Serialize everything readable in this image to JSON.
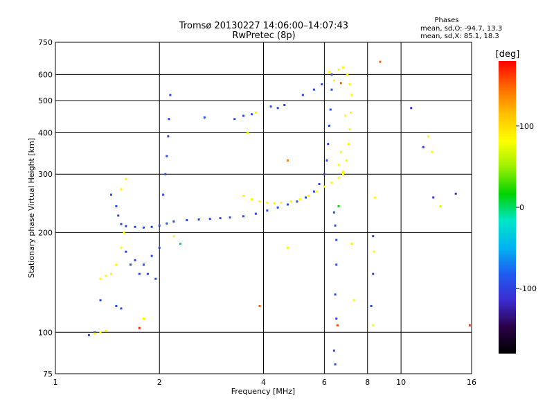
{
  "chart_data": {
    "type": "scatter",
    "title": "Tromsø 20130227 14:06:00–14:07:43",
    "subtitle": "RwPretec (8p)",
    "xlabel": "Frequency [MHz]",
    "ylabel": "Stationary phase Virtual Height [km]",
    "x_scale": "log",
    "y_scale": "log",
    "xlim": [
      1,
      16
    ],
    "ylim": [
      75,
      750
    ],
    "x_ticks": [
      1,
      2,
      4,
      6,
      8,
      10,
      16
    ],
    "y_ticks": [
      75,
      100,
      200,
      300,
      400,
      500,
      600,
      750
    ],
    "grid": true,
    "stats": {
      "heading": "Phases",
      "line1": "mean, sd,O: -94.7, 13.3",
      "line2": "mean, sd,X:  85.1, 18.3"
    },
    "colorbar": {
      "label": "[deg]",
      "range": [
        -180,
        180
      ],
      "ticks": [
        100,
        0,
        -100
      ],
      "colormap": [
        "#000000",
        "#2a0048",
        "#3b2bd0",
        "#1e5cf0",
        "#00b4f0",
        "#00e6c8",
        "#00d200",
        "#9af000",
        "#ffff00",
        "#ffc000",
        "#ff6a00",
        "#ff0000"
      ]
    },
    "series": [
      {
        "mode": "O",
        "phase_deg": -95,
        "points": [
          [
            1.55,
            212
          ],
          [
            1.6,
            209
          ],
          [
            1.7,
            208
          ],
          [
            1.8,
            207
          ],
          [
            1.9,
            208
          ],
          [
            2.0,
            210
          ],
          [
            2.1,
            213
          ],
          [
            2.2,
            216
          ],
          [
            2.4,
            218
          ],
          [
            2.6,
            219
          ],
          [
            2.8,
            220
          ],
          [
            3.0,
            221
          ],
          [
            3.2,
            222
          ],
          [
            3.5,
            224
          ],
          [
            3.8,
            228
          ],
          [
            4.1,
            233
          ],
          [
            4.4,
            238
          ],
          [
            4.7,
            243
          ],
          [
            5.0,
            248
          ],
          [
            5.3,
            255
          ],
          [
            5.6,
            266
          ],
          [
            5.8,
            280
          ],
          [
            6.0,
            300
          ],
          [
            6.1,
            330
          ],
          [
            6.15,
            370
          ],
          [
            6.2,
            420
          ],
          [
            6.25,
            470
          ],
          [
            6.3,
            540
          ],
          [
            6.3,
            600
          ],
          [
            2.05,
            260
          ],
          [
            2.08,
            300
          ],
          [
            2.1,
            340
          ],
          [
            2.12,
            390
          ],
          [
            2.13,
            440
          ],
          [
            2.15,
            520
          ],
          [
            1.45,
            260
          ],
          [
            1.5,
            240
          ],
          [
            1.52,
            225
          ],
          [
            4.2,
            480
          ],
          [
            4.4,
            475
          ],
          [
            4.6,
            485
          ],
          [
            5.2,
            520
          ],
          [
            5.6,
            540
          ],
          [
            5.9,
            560
          ],
          [
            2.7,
            445
          ],
          [
            3.3,
            440
          ],
          [
            3.5,
            450
          ],
          [
            3.7,
            455
          ],
          [
            1.6,
            175
          ],
          [
            1.7,
            165
          ],
          [
            1.8,
            160
          ],
          [
            1.9,
            170
          ],
          [
            2.0,
            180
          ],
          [
            1.85,
            150
          ],
          [
            1.95,
            145
          ],
          [
            1.75,
            150
          ],
          [
            1.65,
            160
          ],
          [
            1.5,
            120
          ],
          [
            1.55,
            118
          ],
          [
            1.3,
            100
          ],
          [
            1.25,
            98
          ],
          [
            6.4,
            230
          ],
          [
            6.45,
            210
          ],
          [
            6.5,
            190
          ],
          [
            6.5,
            160
          ],
          [
            6.45,
            130
          ],
          [
            6.5,
            110
          ],
          [
            6.4,
            88
          ],
          [
            6.45,
            80
          ],
          [
            8.3,
            195
          ],
          [
            8.3,
            150
          ],
          [
            8.2,
            120
          ],
          [
            1.35,
            125
          ]
        ]
      },
      {
        "mode": "X",
        "phase_deg": 85,
        "points": [
          [
            3.5,
            258
          ],
          [
            3.7,
            252
          ],
          [
            3.9,
            248
          ],
          [
            4.1,
            246
          ],
          [
            4.3,
            245
          ],
          [
            4.5,
            246
          ],
          [
            4.8,
            248
          ],
          [
            5.1,
            252
          ],
          [
            5.4,
            258
          ],
          [
            5.7,
            266
          ],
          [
            6.0,
            275
          ],
          [
            6.3,
            283
          ],
          [
            6.6,
            292
          ],
          [
            6.8,
            305
          ],
          [
            6.95,
            330
          ],
          [
            7.05,
            370
          ],
          [
            7.1,
            410
          ],
          [
            7.15,
            460
          ],
          [
            7.2,
            520
          ],
          [
            7.1,
            560
          ],
          [
            7.0,
            600
          ],
          [
            6.8,
            630
          ],
          [
            6.6,
            620
          ],
          [
            1.35,
            145
          ],
          [
            1.4,
            148
          ],
          [
            1.45,
            150
          ],
          [
            1.5,
            160
          ],
          [
            1.55,
            180
          ],
          [
            1.58,
            200
          ],
          [
            1.55,
            270
          ],
          [
            1.6,
            290
          ],
          [
            1.3,
            99
          ],
          [
            1.35,
            100
          ],
          [
            1.4,
            101
          ],
          [
            1.8,
            110
          ],
          [
            6.6,
            320
          ],
          [
            6.7,
            350
          ],
          [
            6.8,
            300
          ],
          [
            6.9,
            450
          ],
          [
            3.6,
            400
          ],
          [
            3.8,
            460
          ],
          [
            6.4,
            575
          ],
          [
            6.2,
            610
          ],
          [
            8.4,
            255
          ],
          [
            8.35,
            175
          ],
          [
            8.3,
            105
          ],
          [
            7.2,
            185
          ],
          [
            7.3,
            125
          ],
          [
            4.7,
            180
          ],
          [
            12.0,
            390
          ],
          [
            12.3,
            350
          ],
          [
            2.2,
            195
          ]
        ]
      }
    ],
    "outliers": [
      {
        "x": 8.7,
        "y": 655,
        "phase_deg": 150
      },
      {
        "x": 10.7,
        "y": 475,
        "phase_deg": -110
      },
      {
        "x": 11.6,
        "y": 362,
        "phase_deg": -110
      },
      {
        "x": 12.4,
        "y": 255,
        "phase_deg": -110
      },
      {
        "x": 13.0,
        "y": 240,
        "phase_deg": 70
      },
      {
        "x": 14.4,
        "y": 262,
        "phase_deg": -110
      },
      {
        "x": 15.8,
        "y": 105,
        "phase_deg": 170
      },
      {
        "x": 4.7,
        "y": 330,
        "phase_deg": 140
      },
      {
        "x": 3.9,
        "y": 120,
        "phase_deg": 150
      },
      {
        "x": 1.75,
        "y": 103,
        "phase_deg": 170
      },
      {
        "x": 2.3,
        "y": 185,
        "phase_deg": 0
      },
      {
        "x": 6.6,
        "y": 240,
        "phase_deg": 20
      },
      {
        "x": 6.7,
        "y": 565,
        "phase_deg": 150
      },
      {
        "x": 6.55,
        "y": 105,
        "phase_deg": 160
      }
    ]
  }
}
